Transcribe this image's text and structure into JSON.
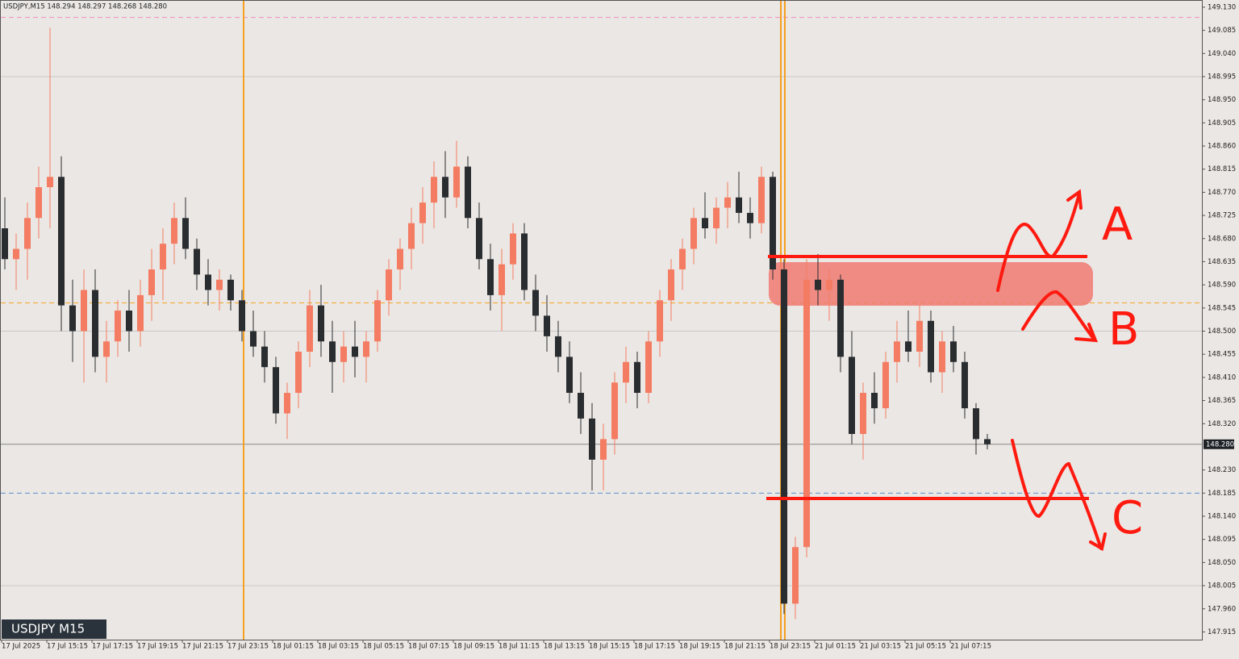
{
  "chart_data": {
    "type": "candlestick",
    "header": "USDJPY,M15  148.294 148.297 148.268 148.280",
    "symbol_label": "USDJPY M15",
    "last_price_label": "148.280",
    "bull_color": "#f47c62",
    "bear_color": "#2a2d30",
    "annotations": [
      "A",
      "B",
      "C"
    ],
    "x_labels": [
      "17 Jul 2025",
      "17 Jul 15:15",
      "17 Jul 17:15",
      "17 Jul 19:15",
      "17 Jul 21:15",
      "17 Jul 23:15",
      "18 Jul 01:15",
      "18 Jul 03:15",
      "18 Jul 05:15",
      "18 Jul 07:15",
      "18 Jul 09:15",
      "18 Jul 11:15",
      "18 Jul 13:15",
      "18 Jul 15:15",
      "18 Jul 17:15",
      "18 Jul 19:15",
      "18 Jul 21:15",
      "18 Jul 23:15",
      "21 Jul 01:15",
      "21 Jul 03:15",
      "21 Jul 05:15",
      "21 Jul 07:15"
    ],
    "ylim": [
      147.9,
      149.144
    ],
    "yticks": [
      {
        "value": 149.13,
        "label": "149.130"
      },
      {
        "value": 149.085,
        "label": "149.085"
      },
      {
        "value": 149.04,
        "label": "149.040"
      },
      {
        "value": 148.995,
        "label": "148.995"
      },
      {
        "value": 148.95,
        "label": "148.950"
      },
      {
        "value": 148.905,
        "label": "148.905"
      },
      {
        "value": 148.86,
        "label": "148.860"
      },
      {
        "value": 148.815,
        "label": "148.815"
      },
      {
        "value": 148.77,
        "label": "148.770"
      },
      {
        "value": 148.725,
        "label": "148.725"
      },
      {
        "value": 148.68,
        "label": "148.680"
      },
      {
        "value": 148.635,
        "label": "148.635"
      },
      {
        "value": 148.59,
        "label": "148.590"
      },
      {
        "value": 148.545,
        "label": "148.545"
      },
      {
        "value": 148.5,
        "label": "148.500"
      },
      {
        "value": 148.455,
        "label": "148.455"
      },
      {
        "value": 148.41,
        "label": "148.410"
      },
      {
        "value": 148.365,
        "label": "148.365"
      },
      {
        "value": 148.32,
        "label": "148.320"
      },
      {
        "value": 148.23,
        "label": "148.230"
      },
      {
        "value": 148.185,
        "label": "148.185"
      },
      {
        "value": 148.14,
        "label": "148.140"
      },
      {
        "value": 148.095,
        "label": "148.095"
      },
      {
        "value": 148.05,
        "label": "148.050"
      },
      {
        "value": 148.005,
        "label": "148.005"
      },
      {
        "value": 147.96,
        "label": "147.960"
      },
      {
        "value": 147.915,
        "label": "147.915"
      }
    ],
    "hlines": [
      {
        "value": 149.11,
        "color": "#f08cc0",
        "dash": true
      },
      {
        "value": 148.555,
        "color": "#f5a623",
        "dash": true
      },
      {
        "value": 148.185,
        "color": "#5b8fc9",
        "dash": true
      },
      {
        "value": 148.28,
        "color": "#888888",
        "dash": false
      },
      {
        "value": 148.995,
        "color": "#c8c8c8",
        "dash": false
      },
      {
        "value": 148.5,
        "color": "#c8c8c8",
        "dash": false
      },
      {
        "value": 148.005,
        "color": "#c8c8c8",
        "dash": false
      }
    ],
    "candles": [
      [
        148.7,
        148.76,
        148.62,
        148.64
      ],
      [
        148.64,
        148.69,
        148.58,
        148.66
      ],
      [
        148.66,
        148.75,
        148.6,
        148.72
      ],
      [
        148.72,
        148.82,
        148.68,
        148.78
      ],
      [
        148.78,
        149.09,
        148.7,
        148.8
      ],
      [
        148.8,
        148.84,
        148.5,
        148.55
      ],
      [
        148.55,
        148.6,
        148.44,
        148.5
      ],
      [
        148.5,
        148.62,
        148.4,
        148.58
      ],
      [
        148.58,
        148.62,
        148.42,
        148.45
      ],
      [
        148.45,
        148.52,
        148.4,
        148.48
      ],
      [
        148.48,
        148.56,
        148.45,
        148.54
      ],
      [
        148.54,
        148.58,
        148.46,
        148.5
      ],
      [
        148.5,
        148.6,
        148.47,
        148.57
      ],
      [
        148.57,
        148.66,
        148.52,
        148.62
      ],
      [
        148.62,
        148.7,
        148.56,
        148.67
      ],
      [
        148.67,
        148.75,
        148.63,
        148.72
      ],
      [
        148.72,
        148.76,
        148.64,
        148.66
      ],
      [
        148.66,
        148.68,
        148.58,
        148.61
      ],
      [
        148.61,
        148.64,
        148.55,
        148.58
      ],
      [
        148.58,
        148.62,
        148.54,
        148.6
      ],
      [
        148.6,
        148.61,
        148.54,
        148.56
      ],
      [
        148.56,
        148.58,
        148.48,
        148.5
      ],
      [
        148.5,
        148.54,
        148.45,
        148.47
      ],
      [
        148.47,
        148.5,
        148.4,
        148.43
      ],
      [
        148.43,
        148.45,
        148.32,
        148.34
      ],
      [
        148.34,
        148.4,
        148.29,
        148.38
      ],
      [
        148.38,
        148.48,
        148.35,
        148.46
      ],
      [
        148.46,
        148.58,
        148.43,
        148.55
      ],
      [
        148.55,
        148.59,
        148.45,
        148.48
      ],
      [
        148.48,
        148.52,
        148.38,
        148.44
      ],
      [
        148.44,
        148.5,
        148.4,
        148.47
      ],
      [
        148.47,
        148.52,
        148.41,
        148.45
      ],
      [
        148.45,
        148.5,
        148.4,
        148.48
      ],
      [
        148.48,
        148.58,
        148.46,
        148.56
      ],
      [
        148.56,
        148.64,
        148.53,
        148.62
      ],
      [
        148.62,
        148.68,
        148.58,
        148.66
      ],
      [
        148.66,
        148.74,
        148.62,
        148.71
      ],
      [
        148.71,
        148.78,
        148.67,
        148.75
      ],
      [
        148.75,
        148.83,
        148.7,
        148.8
      ],
      [
        148.8,
        148.85,
        148.72,
        148.76
      ],
      [
        148.76,
        148.87,
        148.74,
        148.82
      ],
      [
        148.82,
        148.84,
        148.7,
        148.72
      ],
      [
        148.72,
        148.75,
        148.62,
        148.64
      ],
      [
        148.64,
        148.67,
        148.54,
        148.57
      ],
      [
        148.57,
        148.66,
        148.5,
        148.63
      ],
      [
        148.63,
        148.71,
        148.6,
        148.69
      ],
      [
        148.69,
        148.71,
        148.56,
        148.58
      ],
      [
        148.58,
        148.61,
        148.5,
        148.53
      ],
      [
        148.53,
        148.57,
        148.46,
        148.49
      ],
      [
        148.49,
        148.52,
        148.42,
        148.45
      ],
      [
        148.45,
        148.48,
        148.36,
        148.38
      ],
      [
        148.38,
        148.42,
        148.3,
        148.33
      ],
      [
        148.33,
        148.36,
        148.19,
        148.25
      ],
      [
        148.25,
        148.32,
        148.19,
        148.29
      ],
      [
        148.29,
        148.42,
        148.26,
        148.4
      ],
      [
        148.4,
        148.47,
        148.36,
        148.44
      ],
      [
        148.44,
        148.46,
        148.35,
        148.38
      ],
      [
        148.38,
        148.5,
        148.36,
        148.48
      ],
      [
        148.48,
        148.58,
        148.45,
        148.56
      ],
      [
        148.56,
        148.64,
        148.52,
        148.62
      ],
      [
        148.62,
        148.68,
        148.58,
        148.66
      ],
      [
        148.66,
        148.74,
        148.63,
        148.72
      ],
      [
        148.72,
        148.77,
        148.68,
        148.7
      ],
      [
        148.7,
        148.76,
        148.67,
        148.74
      ],
      [
        148.74,
        148.79,
        148.7,
        148.76
      ],
      [
        148.76,
        148.81,
        148.71,
        148.73
      ],
      [
        148.73,
        148.76,
        148.68,
        148.71
      ],
      [
        148.71,
        148.82,
        148.69,
        148.8
      ],
      [
        148.8,
        148.81,
        148.6,
        148.62
      ],
      [
        148.62,
        148.64,
        147.95,
        147.97
      ],
      [
        147.97,
        148.1,
        147.94,
        148.08
      ],
      [
        148.08,
        148.64,
        148.06,
        148.6
      ],
      [
        148.6,
        148.65,
        148.55,
        148.58
      ],
      [
        148.58,
        148.62,
        148.52,
        148.6
      ],
      [
        148.6,
        148.61,
        148.42,
        148.45
      ],
      [
        148.45,
        148.5,
        148.28,
        148.3
      ],
      [
        148.3,
        148.4,
        148.25,
        148.38
      ],
      [
        148.38,
        148.42,
        148.32,
        148.35
      ],
      [
        148.35,
        148.46,
        148.33,
        148.44
      ],
      [
        148.44,
        148.52,
        148.4,
        148.48
      ],
      [
        148.48,
        148.54,
        148.44,
        148.46
      ],
      [
        148.46,
        148.55,
        148.43,
        148.52
      ],
      [
        148.52,
        148.54,
        148.4,
        148.42
      ],
      [
        148.42,
        148.5,
        148.38,
        148.48
      ],
      [
        148.48,
        148.51,
        148.42,
        148.44
      ],
      [
        148.44,
        148.46,
        148.33,
        148.35
      ],
      [
        148.35,
        148.36,
        148.26,
        148.29
      ],
      [
        148.29,
        148.3,
        148.27,
        148.28
      ]
    ]
  }
}
